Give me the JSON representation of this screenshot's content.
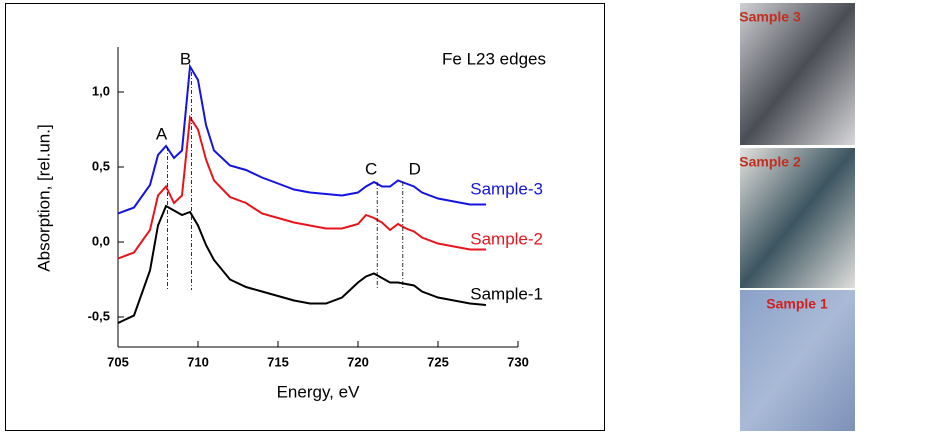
{
  "chart_data": {
    "type": "line",
    "annotation_title": "Fe L23 edges",
    "xlabel": "Energy, eV",
    "ylabel": "Absorption, [rel.un.]",
    "xlim": [
      705,
      730
    ],
    "xticks": [
      705,
      710,
      715,
      720,
      725,
      730
    ],
    "ylim": [
      -0.7,
      1.3
    ],
    "yticks": [
      {
        "value": -0.5,
        "label": "-0,5"
      },
      {
        "value": 0,
        "label": "0,0"
      },
      {
        "value": 0.5,
        "label": "0,5"
      },
      {
        "value": 1,
        "label": "1,0"
      }
    ],
    "x": [
      705,
      706,
      707,
      707.5,
      708,
      708.5,
      709,
      709.5,
      710,
      710.5,
      711,
      712,
      713,
      714,
      715,
      716,
      717,
      718,
      719,
      720,
      720.5,
      721,
      721.5,
      722,
      722.5,
      723,
      723.5,
      724,
      725,
      726,
      727,
      728
    ],
    "series": [
      {
        "name": "Sample-1",
        "color": "#000000",
        "values": [
          -0.54,
          -0.49,
          -0.19,
          0.11,
          0.24,
          0.21,
          0.18,
          0.2,
          0.11,
          -0.02,
          -0.12,
          -0.25,
          -0.3,
          -0.33,
          -0.36,
          -0.39,
          -0.41,
          -0.41,
          -0.37,
          -0.27,
          -0.23,
          -0.21,
          -0.24,
          -0.27,
          -0.27,
          -0.28,
          -0.29,
          -0.33,
          -0.37,
          -0.39,
          -0.41,
          -0.42
        ]
      },
      {
        "name": "Sample-2",
        "color": "#e8141c",
        "values": [
          -0.11,
          -0.07,
          0.08,
          0.31,
          0.37,
          0.26,
          0.31,
          0.83,
          0.75,
          0.55,
          0.41,
          0.3,
          0.26,
          0.19,
          0.16,
          0.13,
          0.11,
          0.09,
          0.09,
          0.12,
          0.18,
          0.16,
          0.13,
          0.08,
          0.12,
          0.09,
          0.07,
          0.03,
          -0.01,
          -0.03,
          -0.05,
          -0.05
        ]
      },
      {
        "name": "Sample-3",
        "color": "#1414e0",
        "values": [
          0.19,
          0.23,
          0.38,
          0.58,
          0.64,
          0.56,
          0.61,
          1.17,
          1.08,
          0.78,
          0.61,
          0.51,
          0.48,
          0.43,
          0.39,
          0.35,
          0.33,
          0.32,
          0.31,
          0.33,
          0.37,
          0.4,
          0.37,
          0.37,
          0.41,
          0.39,
          0.37,
          0.33,
          0.29,
          0.27,
          0.25,
          0.25
        ]
      }
    ],
    "peaks": [
      {
        "label": "A",
        "x": 708.1
      },
      {
        "label": "B",
        "x": 709.6
      },
      {
        "label": "C",
        "x": 721.2
      },
      {
        "label": "D",
        "x": 722.8
      }
    ]
  },
  "photos": [
    {
      "label": "Sample 3"
    },
    {
      "label": "Sample 2"
    },
    {
      "label": "Sample 1"
    }
  ]
}
